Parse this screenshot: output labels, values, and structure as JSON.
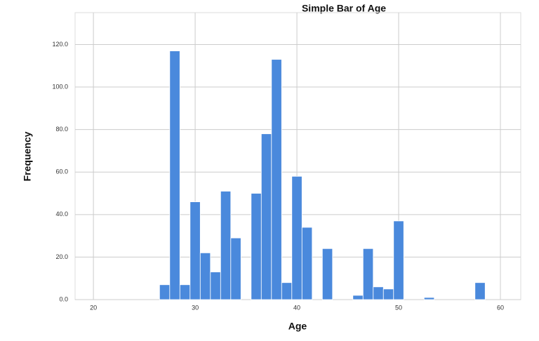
{
  "chart_data": {
    "type": "bar",
    "title": "Simple Bar of Age",
    "x_label": "Age",
    "y_label": "Frequency",
    "x": [
      27,
      28,
      29,
      30,
      31,
      32,
      33,
      34,
      36,
      37,
      38,
      39,
      40,
      41,
      43,
      46,
      47,
      48,
      49,
      50,
      53,
      58
    ],
    "values": [
      7,
      117,
      7,
      46,
      22,
      13,
      51,
      29,
      50,
      78,
      113,
      8,
      58,
      34,
      24,
      2,
      24,
      6,
      5,
      37,
      1,
      8
    ],
    "color": "#4a89dc",
    "xlim": [
      18.2,
      62
    ],
    "xticks": [
      20,
      30,
      40,
      50,
      60
    ],
    "ylim": [
      0,
      135
    ],
    "yticks": [
      {
        "value": 0,
        "label": "0.0"
      },
      {
        "value": 20,
        "label": "20.0"
      },
      {
        "value": 40,
        "label": "40.0"
      },
      {
        "value": 60,
        "label": "60.0"
      },
      {
        "value": 80,
        "label": "80.0"
      },
      {
        "value": 100,
        "label": "100.0"
      },
      {
        "value": 120,
        "label": "120.0"
      }
    ],
    "grid": true
  }
}
